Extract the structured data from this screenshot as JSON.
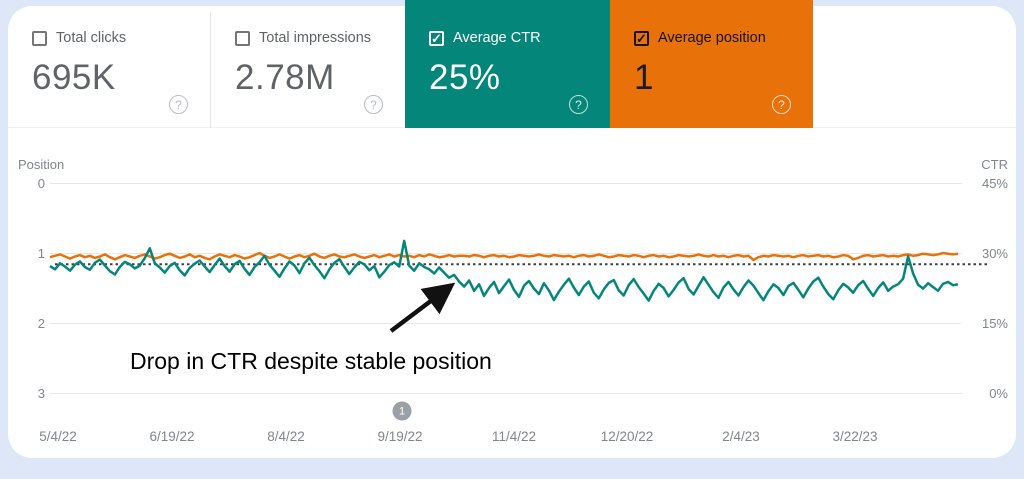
{
  "cards": [
    {
      "label": "Total clicks",
      "value": "695K",
      "checked": false,
      "help_glyph": "?"
    },
    {
      "label": "Total impressions",
      "value": "2.78M",
      "checked": false,
      "help_glyph": "?"
    },
    {
      "label": "Average CTR",
      "value": "25%",
      "checked": true,
      "color": "#04867a",
      "help_glyph": "?"
    },
    {
      "label": "Average position",
      "value": "1",
      "checked": true,
      "color": "#e8710a",
      "help_glyph": "?"
    }
  ],
  "checkmark_glyph": "✓",
  "chart_data": {
    "type": "line",
    "x_tick_labels": [
      "5/4/22",
      "6/19/22",
      "8/4/22",
      "9/19/22",
      "11/4/22",
      "12/20/22",
      "2/4/23",
      "3/22/23"
    ],
    "y_left": {
      "label": "Position",
      "ticks": [
        "0",
        "1",
        "2",
        "3"
      ],
      "range": [
        0,
        3
      ]
    },
    "y_right": {
      "label": "CTR",
      "ticks": [
        "45%",
        "30%",
        "15%",
        "0%"
      ],
      "range_pct": [
        45,
        0
      ]
    },
    "grid": true,
    "legend_position": "none",
    "reference_line": {
      "ctr_pct": 27.6,
      "style": "dotted",
      "color": "#3c4043"
    },
    "annotation": {
      "text": "Drop in CTR despite stable position"
    },
    "timeline_marker": {
      "label": "1",
      "near_date": "9/19/22"
    },
    "series": [
      {
        "name": "Average position",
        "axis": "left",
        "color": "#e8710a",
        "values": [
          1.06,
          1.04,
          1.02,
          1.05,
          1.08,
          1.05,
          1.03,
          1.06,
          1.04,
          1.07,
          1.05,
          1.02,
          1.06,
          1.09,
          1.06,
          1.03,
          1.05,
          1.07,
          1.04,
          1.02,
          1.05,
          1.08,
          1.06,
          1.03,
          1.01,
          1.04,
          1.07,
          1.05,
          1.02,
          1.06,
          1.04,
          1.07,
          1.09,
          1.05,
          1.02,
          1.04,
          1.06,
          1.03,
          1.05,
          1.08,
          1.06,
          1.03,
          1.0,
          1.04,
          1.07,
          1.05,
          1.02,
          1.05,
          1.08,
          1.05,
          1.03,
          1.06,
          1.04,
          1.01,
          1.05,
          1.07,
          1.04,
          1.02,
          1.05,
          1.06,
          1.04,
          1.02,
          1.05,
          1.07,
          1.05,
          1.03,
          1.06,
          1.04,
          1.02,
          1.05,
          1.03,
          1.05,
          1.04,
          1.06,
          1.03,
          1.05,
          1.02,
          1.04,
          1.06,
          1.05,
          1.03,
          1.05,
          1.04,
          1.04,
          1.05,
          1.03,
          1.04,
          1.06,
          1.04,
          1.03,
          1.05,
          1.04,
          1.06,
          1.05,
          1.03,
          1.04,
          1.05,
          1.04,
          1.02,
          1.04,
          1.05,
          1.03,
          1.04,
          1.05,
          1.04,
          1.06,
          1.04,
          1.03,
          1.05,
          1.04,
          1.02,
          1.04,
          1.06,
          1.05,
          1.03,
          1.04,
          1.05,
          1.03,
          1.04,
          1.06,
          1.04,
          1.03,
          1.05,
          1.04,
          1.06,
          1.05,
          1.03,
          1.04,
          1.05,
          1.04,
          1.02,
          1.04,
          1.05,
          1.03,
          1.05,
          1.04,
          1.06,
          1.04,
          1.03,
          1.05,
          1.04,
          1.1,
          1.06,
          1.04,
          1.05,
          1.03,
          1.04,
          1.05,
          1.04,
          1.06,
          1.04,
          1.03,
          1.05,
          1.04,
          1.03,
          1.05,
          1.04,
          1.06,
          1.05,
          1.03,
          1.04,
          1.09,
          1.07,
          1.04,
          1.03,
          1.05,
          1.04,
          1.03,
          1.05,
          1.04,
          1.05,
          1.03,
          1.02,
          1.04,
          1.03,
          1.01,
          1.02,
          1.03,
          1.02,
          1.0,
          1.01,
          1.02,
          1.01
        ]
      },
      {
        "name": "Average CTR",
        "axis": "right",
        "unit": "%",
        "color": "#04867a",
        "values": [
          27.2,
          26.5,
          27.8,
          27.1,
          26.2,
          27.5,
          28.2,
          27.0,
          26.4,
          27.9,
          28.6,
          27.3,
          26.1,
          25.4,
          27.0,
          28.1,
          27.6,
          26.7,
          27.3,
          28.9,
          31.0,
          27.8,
          26.9,
          25.8,
          27.2,
          27.9,
          26.3,
          25.2,
          26.8,
          27.7,
          28.4,
          27.1,
          25.9,
          27.4,
          28.8,
          27.2,
          26.0,
          27.6,
          28.3,
          26.6,
          25.3,
          27.0,
          28.0,
          29.4,
          27.5,
          26.2,
          24.9,
          26.7,
          28.2,
          27.3,
          25.7,
          27.8,
          29.0,
          27.4,
          26.1,
          24.6,
          26.5,
          27.9,
          28.7,
          27.0,
          25.5,
          26.9,
          28.1,
          27.6,
          26.3,
          27.2,
          24.8,
          26.0,
          27.4,
          28.0,
          27.1,
          32.6,
          27.3,
          26.2,
          27.8,
          27.0,
          26.5,
          25.6,
          26.9,
          25.8,
          24.7,
          25.3,
          23.9,
          22.8,
          24.1,
          21.9,
          23.3,
          20.8,
          22.5,
          23.8,
          21.4,
          22.9,
          24.3,
          22.1,
          20.6,
          23.0,
          24.0,
          22.4,
          21.2,
          23.5,
          22.0,
          19.9,
          21.7,
          23.2,
          24.5,
          22.6,
          21.0,
          22.8,
          23.9,
          21.5,
          20.3,
          22.2,
          23.6,
          24.2,
          22.0,
          20.9,
          23.1,
          24.4,
          22.7,
          21.3,
          19.8,
          21.9,
          23.4,
          22.5,
          20.7,
          22.1,
          23.7,
          24.6,
          22.3,
          21.1,
          23.0,
          24.8,
          23.2,
          21.6,
          20.4,
          22.6,
          23.8,
          22.2,
          20.9,
          22.7,
          24.1,
          23.0,
          21.4,
          19.9,
          21.8,
          23.3,
          22.5,
          21.0,
          22.9,
          23.6,
          22.1,
          20.5,
          22.4,
          23.9,
          24.7,
          22.8,
          21.2,
          20.1,
          22.0,
          23.4,
          22.6,
          21.5,
          23.1,
          24.0,
          22.3,
          20.8,
          22.5,
          23.7,
          21.9,
          22.8,
          23.3,
          24.5,
          29.3,
          25.6,
          23.2,
          22.4,
          23.5,
          22.7,
          21.9,
          23.4,
          23.8,
          23.1,
          23.3
        ]
      }
    ]
  }
}
